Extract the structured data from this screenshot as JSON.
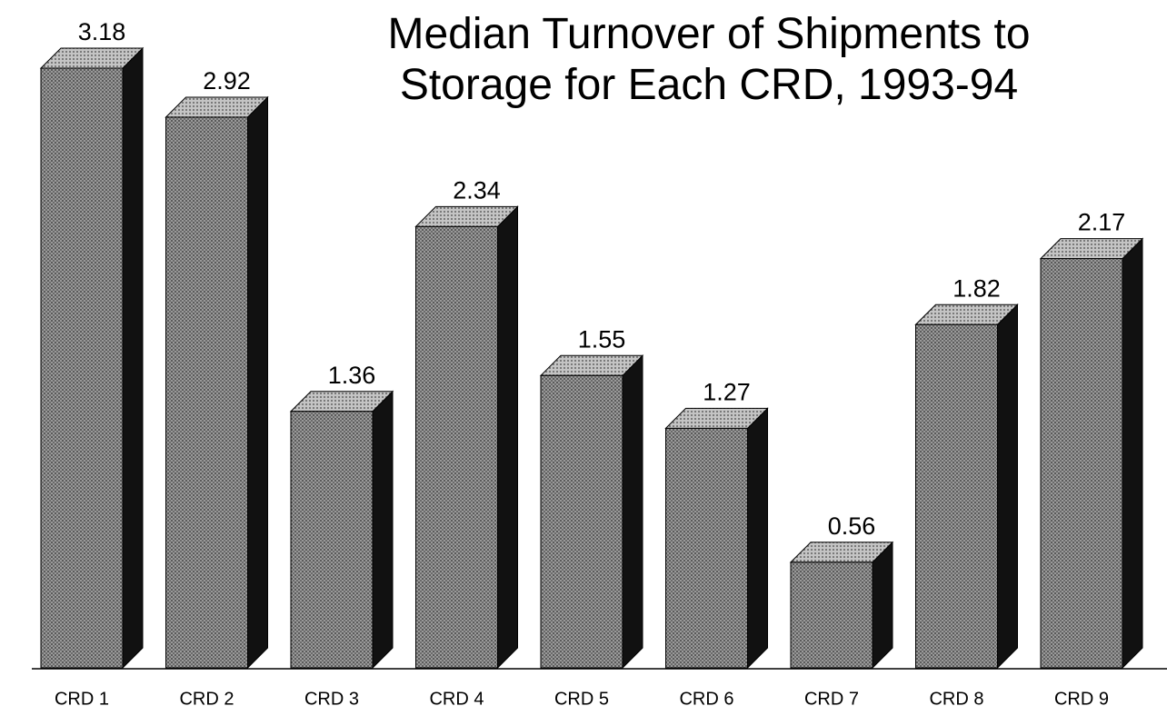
{
  "chart_data": {
    "type": "bar3d",
    "title": "Median Turnover of Shipments to Storage for Each CRD, 1993-94",
    "categories": [
      "CRD 1",
      "CRD 2",
      "CRD 3",
      "CRD 4",
      "CRD 5",
      "CRD 6",
      "CRD 7",
      "CRD 8",
      "CRD 9"
    ],
    "values": [
      3.18,
      2.92,
      1.36,
      2.34,
      1.55,
      1.27,
      0.56,
      1.82,
      2.17
    ],
    "color": "#8c8c8c"
  }
}
